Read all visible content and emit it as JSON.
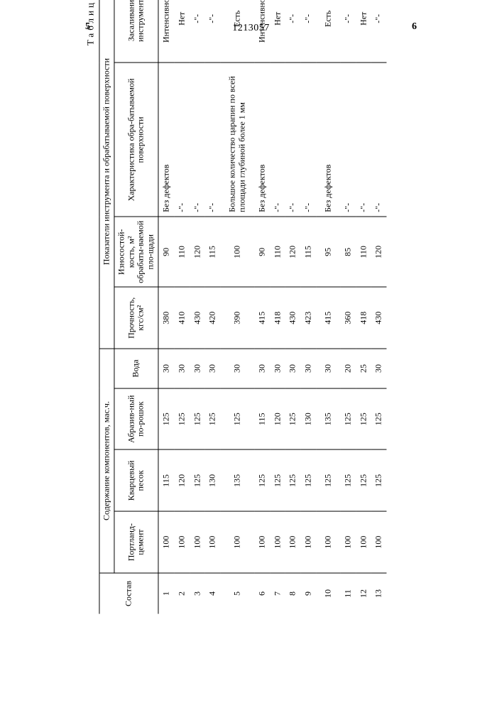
{
  "page_left": "5",
  "doc_number": "1213057",
  "page_right": "6",
  "caption": "Таблица 2",
  "headers": {
    "col_sostav": "Состав",
    "group_components": "Содержание компонентов, мас.ч.",
    "group_indicators": "Показатели инструмента и обрабатываемой поверхности",
    "c1": "Портланд-цемент",
    "c2": "Кварцевый песок",
    "c3": "Абразив-ный по-рошок",
    "c4": "Вода",
    "i1": "Прочность, кгс/см²",
    "i2": "Износостой-кость, м² обрабаты-ваемой пло-щади",
    "i3": "Характеристика обра-батываемой поверхности",
    "i4": "Засаливание инструмента"
  },
  "rows": [
    {
      "n": "1",
      "pc": "100",
      "kp": "115",
      "ap": "125",
      "w": "30",
      "pr": "380",
      "iz": "90",
      "har": "Без дефектов",
      "zas": "Интенсивное"
    },
    {
      "n": "2",
      "pc": "100",
      "kp": "120",
      "ap": "125",
      "w": "30",
      "pr": "410",
      "iz": "110",
      "har": "-\"-",
      "zas": "Нет"
    },
    {
      "n": "3",
      "pc": "100",
      "kp": "125",
      "ap": "125",
      "w": "30",
      "pr": "430",
      "iz": "120",
      "har": "-\"-",
      "zas": "-\"-"
    },
    {
      "n": "4",
      "pc": "100",
      "kp": "130",
      "ap": "125",
      "w": "30",
      "pr": "420",
      "iz": "115",
      "har": "-\"-",
      "zas": "-\"-"
    },
    {
      "n": "5",
      "pc": "100",
      "kp": "135",
      "ap": "125",
      "w": "30",
      "pr": "390",
      "iz": "100",
      "har": "Большое количество царапин по всей площади глубиной более 1 мм",
      "zas": "Есть"
    },
    {
      "n": "6",
      "pc": "100",
      "kp": "125",
      "ap": "115",
      "w": "30",
      "pr": "415",
      "iz": "90",
      "har": "Без дефектов",
      "zas": "Интенсивное"
    },
    {
      "n": "7",
      "pc": "100",
      "kp": "125",
      "ap": "120",
      "w": "30",
      "pr": "418",
      "iz": "110",
      "har": "-\"-",
      "zas": "Нет"
    },
    {
      "n": "8",
      "pc": "100",
      "kp": "125",
      "ap": "125",
      "w": "30",
      "pr": "430",
      "iz": "120",
      "har": "-\"-",
      "zas": "-\"-"
    },
    {
      "n": "9",
      "pc": "100",
      "kp": "125",
      "ap": "130",
      "w": "30",
      "pr": "423",
      "iz": "115",
      "har": "-\"-",
      "zas": "-\"-"
    },
    {
      "n": "10",
      "pc": "100",
      "kp": "125",
      "ap": "135",
      "w": "30",
      "pr": "415",
      "iz": "95",
      "har": "Без дефектов",
      "zas": "Есть"
    },
    {
      "n": "11",
      "pc": "100",
      "kp": "125",
      "ap": "125",
      "w": "20",
      "pr": "360",
      "iz": "85",
      "har": "-\"-",
      "zas": "-\"-"
    },
    {
      "n": "12",
      "pc": "100",
      "kp": "125",
      "ap": "125",
      "w": "25",
      "pr": "418",
      "iz": "110",
      "har": "-\"-",
      "zas": "Нет"
    },
    {
      "n": "13",
      "pc": "100",
      "kp": "125",
      "ap": "125",
      "w": "30",
      "pr": "430",
      "iz": "120",
      "har": "-\"-",
      "zas": "-\"-"
    }
  ],
  "col_widths": [
    "40",
    "70",
    "70",
    "70",
    "45",
    "70",
    "80",
    "170",
    "100"
  ],
  "font_family": "Times New Roman, serif",
  "body_fontsize": 13,
  "table_fontsize": 12,
  "border_color": "#000000",
  "background_color": "#ffffff"
}
